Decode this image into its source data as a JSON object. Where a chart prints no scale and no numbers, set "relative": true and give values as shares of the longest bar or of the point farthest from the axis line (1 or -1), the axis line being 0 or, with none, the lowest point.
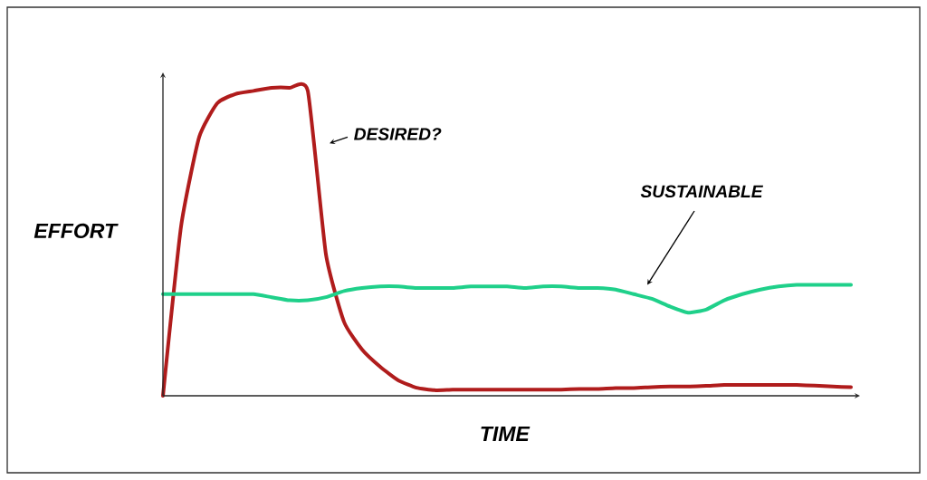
{
  "chart_data": {
    "type": "line",
    "relative": true,
    "xlabel": "TIME",
    "ylabel": "EFFORT",
    "line_style": "solid",
    "marker": "none",
    "legend": false,
    "categories": [
      null,
      null,
      null,
      null,
      null,
      null,
      null,
      null,
      null,
      null,
      null,
      null,
      null,
      null,
      null,
      null,
      null,
      null,
      null,
      null,
      null,
      null,
      null,
      null,
      null,
      null,
      null,
      null,
      null,
      null,
      null,
      null,
      null,
      null,
      null,
      null,
      null,
      null,
      null
    ],
    "series": [
      {
        "name": "DESIRED?",
        "color": "#b01c1c",
        "values": [
          0,
          0.55,
          0.84,
          0.95,
          0.98,
          0.99,
          1,
          1,
          0.99,
          0.46,
          0.24,
          0.15,
          0.094,
          0.05,
          0.026,
          0.018,
          0.02,
          0.02,
          0.02,
          0.02,
          0.02,
          0.02,
          0.02,
          0.022,
          0.022,
          0.025,
          0.025,
          0.028,
          0.03,
          0.03,
          0.032,
          0.035,
          0.035,
          0.035,
          0.035,
          0.035,
          0.033,
          0.03,
          0.028
        ]
      },
      {
        "name": "SUSTAINABLE",
        "color": "#1fd08a",
        "values": [
          0.33,
          0.33,
          0.33,
          0.33,
          0.33,
          0.33,
          0.32,
          0.31,
          0.31,
          0.32,
          0.34,
          0.35,
          0.355,
          0.355,
          0.35,
          0.35,
          0.35,
          0.355,
          0.355,
          0.355,
          0.35,
          0.355,
          0.355,
          0.35,
          0.35,
          0.345,
          0.33,
          0.315,
          0.29,
          0.27,
          0.28,
          0.31,
          0.33,
          0.345,
          0.355,
          0.36,
          0.36,
          0.36,
          0.36
        ]
      }
    ]
  }
}
